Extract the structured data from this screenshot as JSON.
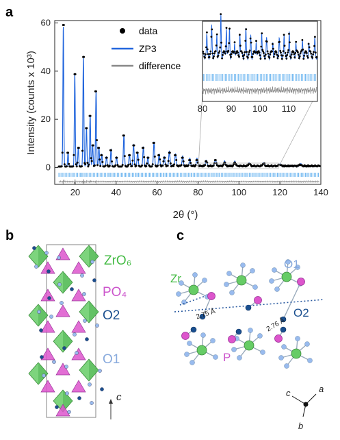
{
  "panels": {
    "a": "a",
    "b": "b",
    "c": "c"
  },
  "colors": {
    "data": "#000000",
    "fit": "#2266dd",
    "difference": "#888888",
    "ticks": "#55aaee",
    "zr": "#66cc66",
    "p": "#dd55cc",
    "o1": "#99bbee",
    "o2": "#1a4f8f"
  },
  "legend": {
    "data": "data",
    "fit": "ZP3",
    "difference": "difference"
  },
  "inset_xticks": [
    "80",
    "90",
    "100",
    "110"
  ],
  "chart_data": {
    "type": "line",
    "xlabel": "2θ (°)",
    "ylabel": "Intensity (counts x 10³)",
    "xlim": [
      10,
      140
    ],
    "ylim": [
      -7,
      61
    ],
    "xticks": [
      "20",
      "40",
      "60",
      "80",
      "100",
      "120",
      "140"
    ],
    "yticks": [
      "0",
      "20",
      "40",
      "60"
    ],
    "peaks": [
      {
        "x": 14.2,
        "y": 58
      },
      {
        "x": 16.5,
        "y": 6
      },
      {
        "x": 19.8,
        "y": 38
      },
      {
        "x": 21.5,
        "y": 8
      },
      {
        "x": 24.0,
        "y": 45
      },
      {
        "x": 25.5,
        "y": 16
      },
      {
        "x": 27.3,
        "y": 21
      },
      {
        "x": 28.5,
        "y": 9
      },
      {
        "x": 30.2,
        "y": 31
      },
      {
        "x": 31.6,
        "y": 8
      },
      {
        "x": 33.0,
        "y": 5
      },
      {
        "x": 35.3,
        "y": 4
      },
      {
        "x": 37.5,
        "y": 7
      },
      {
        "x": 40.2,
        "y": 4
      },
      {
        "x": 43.8,
        "y": 13
      },
      {
        "x": 46.5,
        "y": 5
      },
      {
        "x": 48.5,
        "y": 9
      },
      {
        "x": 50.5,
        "y": 6
      },
      {
        "x": 53.3,
        "y": 8
      },
      {
        "x": 55.5,
        "y": 4
      },
      {
        "x": 58.5,
        "y": 10
      },
      {
        "x": 61.0,
        "y": 5
      },
      {
        "x": 63.5,
        "y": 4
      },
      {
        "x": 66.0,
        "y": 6
      },
      {
        "x": 69.0,
        "y": 5
      },
      {
        "x": 72.5,
        "y": 4
      },
      {
        "x": 76.0,
        "y": 3
      },
      {
        "x": 79.5,
        "y": 3
      },
      {
        "x": 84.0,
        "y": 2.5
      },
      {
        "x": 88.5,
        "y": 3
      },
      {
        "x": 93.0,
        "y": 2
      },
      {
        "x": 98.0,
        "y": 2
      },
      {
        "x": 105.0,
        "y": 1.5
      },
      {
        "x": 112.0,
        "y": 1.5
      },
      {
        "x": 120.0,
        "y": 1
      },
      {
        "x": 130.0,
        "y": 1
      }
    ],
    "inset": {
      "xlim": [
        80,
        120
      ],
      "yscale": "zoomed"
    }
  },
  "structure_b": {
    "zr": "ZrO₆",
    "p": "PO₄",
    "o2": "O2",
    "o1": "O1",
    "axis": "c"
  },
  "structure_c": {
    "zr": "Zr",
    "o1": "O1",
    "o2": "O2",
    "p": "P",
    "d1": "2.75 Å",
    "d2": "2.76 Å",
    "ax_c": "c",
    "ax_a": "a",
    "ax_b": "b"
  }
}
